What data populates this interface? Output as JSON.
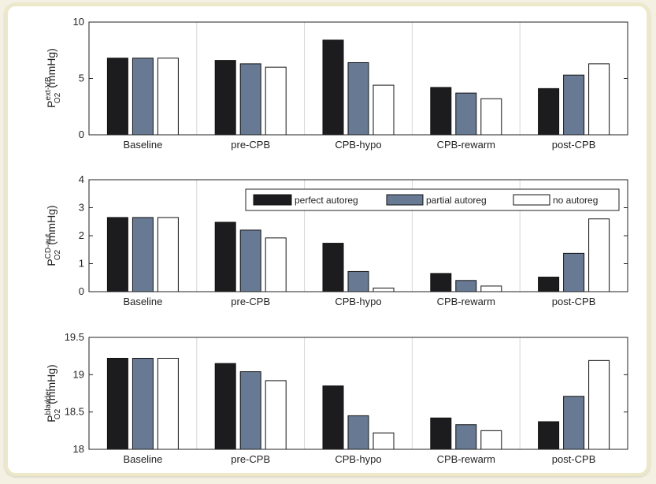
{
  "chart_data": [
    {
      "type": "bar",
      "ylabel": {
        "main": "P",
        "sup": "ext-VB",
        "sub": "O2",
        "unit": "(mmHg)"
      },
      "ylim": [
        0,
        10
      ],
      "yticks": [
        "0",
        "5",
        "10"
      ],
      "categories": [
        "Baseline",
        "pre-CPB",
        "CPB-hypo",
        "CPB-rewarm",
        "post-CPB"
      ],
      "series": [
        {
          "name": "perfect autoreg",
          "color": "#1c1c1e",
          "values": [
            6.8,
            6.6,
            8.4,
            4.2,
            4.1
          ]
        },
        {
          "name": "partial autoreg",
          "color": "#687a93",
          "values": [
            6.8,
            6.3,
            6.4,
            3.7,
            5.3
          ]
        },
        {
          "name": "no autoreg",
          "color": "#ffffff",
          "values": [
            6.8,
            6.0,
            4.4,
            3.2,
            6.3
          ]
        }
      ],
      "grid": "vertical",
      "legend": false
    },
    {
      "type": "bar",
      "ylabel": {
        "main": "P",
        "sup": "CD-out",
        "sub": "O2",
        "unit": "(mmHg)"
      },
      "ylim": [
        0,
        4
      ],
      "yticks": [
        "0",
        "1",
        "2",
        "3",
        "4"
      ],
      "categories": [
        "Baseline",
        "pre-CPB",
        "CPB-hypo",
        "CPB-rewarm",
        "post-CPB"
      ],
      "series": [
        {
          "name": "perfect autoreg",
          "color": "#1c1c1e",
          "values": [
            2.65,
            2.48,
            1.73,
            0.65,
            0.52
          ]
        },
        {
          "name": "partial autoreg",
          "color": "#687a93",
          "values": [
            2.65,
            2.2,
            0.72,
            0.4,
            1.37
          ]
        },
        {
          "name": "no autoreg",
          "color": "#ffffff",
          "values": [
            2.65,
            1.92,
            0.13,
            0.2,
            2.6
          ]
        }
      ],
      "grid": "vertical",
      "legend": "top-right"
    },
    {
      "type": "bar",
      "ylabel": {
        "main": "P",
        "sup": "bladder",
        "sub": "O2",
        "unit": "(mmHg)"
      },
      "ylim": [
        18,
        19.5
      ],
      "yticks": [
        "18",
        "18.5",
        "19",
        "19.5"
      ],
      "categories": [
        "Baseline",
        "pre-CPB",
        "CPB-hypo",
        "CPB-rewarm",
        "post-CPB"
      ],
      "series": [
        {
          "name": "perfect autoreg",
          "color": "#1c1c1e",
          "values": [
            19.22,
            19.15,
            18.85,
            18.42,
            18.37
          ]
        },
        {
          "name": "partial autoreg",
          "color": "#687a93",
          "values": [
            19.22,
            19.04,
            18.45,
            18.33,
            18.71
          ]
        },
        {
          "name": "no autoreg",
          "color": "#ffffff",
          "values": [
            19.22,
            18.92,
            18.22,
            18.25,
            19.19
          ]
        }
      ],
      "grid": "vertical",
      "legend": false
    }
  ]
}
